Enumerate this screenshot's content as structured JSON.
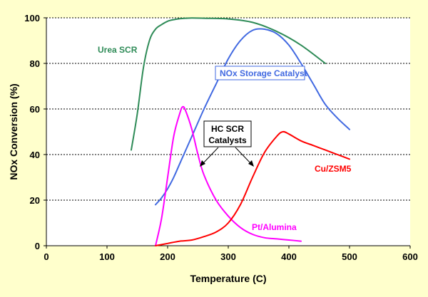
{
  "chart_data": {
    "type": "line",
    "xlabel": "Temperature (C)",
    "ylabel": "NOx Conversion (%)",
    "xlim": [
      0,
      600
    ],
    "ylim": [
      0,
      100
    ],
    "xticks": [
      0,
      100,
      200,
      300,
      400,
      500,
      600
    ],
    "yticks": [
      0,
      20,
      40,
      60,
      80,
      100
    ],
    "grid": "horizontal-dotted",
    "plot_background": "#FFFFFF",
    "page_background": "#FFFFCC",
    "series": [
      {
        "name": "Urea SCR",
        "color": "#2E8B57",
        "x": [
          140,
          150,
          160,
          170,
          180,
          190,
          200,
          210,
          220,
          230,
          240,
          260,
          300,
          340,
          380,
          420,
          460
        ],
        "y": [
          42,
          58,
          78,
          90,
          95,
          97,
          98.5,
          99.2,
          99.6,
          99.8,
          99.9,
          99.8,
          99.5,
          98,
          94,
          88,
          80
        ]
      },
      {
        "name": "NOx Storage Catalyst",
        "color": "#4169E1",
        "x": [
          180,
          190,
          200,
          210,
          220,
          240,
          260,
          280,
          300,
          320,
          340,
          360,
          380,
          400,
          420,
          440,
          460,
          480,
          500
        ],
        "y": [
          18,
          21,
          25,
          30,
          36,
          48,
          60,
          71,
          82,
          90,
          94.5,
          95,
          93,
          88,
          80,
          71,
          62,
          56,
          51
        ]
      },
      {
        "name": "Pt/Alumina",
        "color": "#FF00FF",
        "x": [
          180,
          190,
          200,
          210,
          220,
          225,
          230,
          240,
          250,
          260,
          280,
          300,
          320,
          340,
          360,
          380,
          400,
          420
        ],
        "y": [
          0,
          12,
          30,
          48,
          58,
          61,
          59,
          51,
          40,
          31,
          20,
          13,
          8,
          5,
          3.5,
          3,
          2.5,
          2
        ]
      },
      {
        "name": "Cu/ZSM5",
        "color": "#FF0000",
        "x": [
          180,
          200,
          220,
          240,
          260,
          280,
          300,
          320,
          340,
          360,
          380,
          390,
          400,
          420,
          440,
          460,
          480,
          500
        ],
        "y": [
          0,
          1,
          2,
          2.5,
          4,
          6,
          10,
          18,
          30,
          41,
          48,
          50,
          49,
          46,
          44,
          42,
          40,
          38
        ]
      }
    ],
    "annotations": [
      {
        "text_lines": [
          "HC SCR",
          "Catalysts"
        ],
        "box": true
      }
    ]
  }
}
